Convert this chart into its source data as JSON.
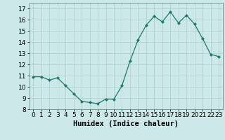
{
  "x": [
    0,
    1,
    2,
    3,
    4,
    5,
    6,
    7,
    8,
    9,
    10,
    11,
    12,
    13,
    14,
    15,
    16,
    17,
    18,
    19,
    20,
    21,
    22,
    23
  ],
  "y": [
    10.9,
    10.9,
    10.6,
    10.8,
    10.1,
    9.4,
    8.7,
    8.6,
    8.5,
    8.9,
    8.9,
    10.1,
    12.3,
    14.2,
    15.5,
    16.3,
    15.8,
    16.7,
    15.7,
    16.4,
    15.6,
    14.3,
    12.9,
    12.7
  ],
  "line_color": "#1a7a6e",
  "marker": "D",
  "marker_size": 2.0,
  "bg_color": "#cce8e8",
  "grid_color": "#aacccc",
  "xlabel": "Humidex (Indice chaleur)",
  "xlim": [
    -0.5,
    23.5
  ],
  "ylim": [
    8,
    17.5
  ],
  "yticks": [
    8,
    9,
    10,
    11,
    12,
    13,
    14,
    15,
    16,
    17
  ],
  "xticks": [
    0,
    1,
    2,
    3,
    4,
    5,
    6,
    7,
    8,
    9,
    10,
    11,
    12,
    13,
    14,
    15,
    16,
    17,
    18,
    19,
    20,
    21,
    22,
    23
  ],
  "tick_fontsize": 6.5,
  "xlabel_fontsize": 7.5
}
